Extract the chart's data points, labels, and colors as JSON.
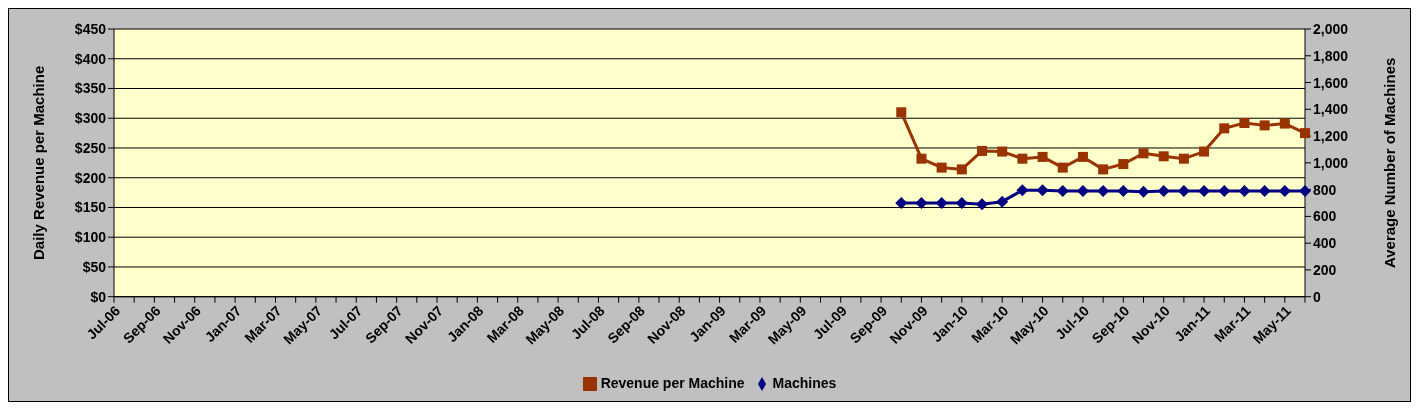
{
  "chart_data": {
    "type": "line",
    "ylabel": "Daily Revenue per Machine",
    "y2label": "Average Number of Machines",
    "categories": [
      "Jul-06",
      null,
      "Sep-06",
      null,
      "Nov-06",
      null,
      "Jan-07",
      null,
      "Mar-07",
      null,
      "May-07",
      null,
      "Jul-07",
      null,
      "Sep-07",
      null,
      "Nov-07",
      null,
      "Jan-08",
      null,
      "Mar-08",
      null,
      "May-08",
      null,
      "Jul-08",
      null,
      "Sep-08",
      null,
      "Nov-08",
      null,
      "Jan-09",
      null,
      "Mar-09",
      null,
      "May-09",
      null,
      "Jul-09",
      null,
      "Sep-09",
      null,
      "Nov-09",
      null,
      "Jan-10",
      null,
      "Mar-10",
      null,
      "May-10",
      null,
      "Jul-10",
      null,
      "Sep-10",
      null,
      "Nov-10",
      null,
      "Jan-11",
      null,
      "Mar-11",
      null,
      "May-11",
      null
    ],
    "series": [
      {
        "name": "Revenue per Machine",
        "color": "#993300",
        "marker": "square",
        "values": [
          null,
          null,
          null,
          null,
          null,
          null,
          null,
          null,
          null,
          null,
          null,
          null,
          null,
          null,
          null,
          null,
          null,
          null,
          null,
          null,
          null,
          null,
          null,
          null,
          null,
          null,
          null,
          null,
          null,
          null,
          null,
          null,
          null,
          null,
          null,
          null,
          null,
          null,
          null,
          310,
          232,
          217,
          214,
          245,
          244,
          232,
          235,
          217,
          235,
          214,
          223,
          241,
          236,
          232,
          244,
          283,
          292,
          288,
          291,
          275
        ]
      },
      {
        "name": "Machines",
        "color": "#000080",
        "marker": "diamond",
        "axis": "y2",
        "values": [
          null,
          null,
          null,
          null,
          null,
          null,
          null,
          null,
          null,
          null,
          null,
          null,
          null,
          null,
          null,
          null,
          null,
          null,
          null,
          null,
          null,
          null,
          null,
          null,
          null,
          null,
          null,
          null,
          null,
          null,
          null,
          null,
          null,
          null,
          null,
          null,
          null,
          null,
          null,
          700,
          700,
          700,
          700,
          690,
          710,
          795,
          795,
          790,
          790,
          790,
          790,
          785,
          790,
          790,
          790,
          790,
          790,
          790,
          790,
          790
        ]
      }
    ],
    "ylim": [
      0,
      450
    ],
    "yticks": [
      {
        "value": 0,
        "label": "$0"
      },
      {
        "value": 50,
        "label": "$50"
      },
      {
        "value": 100,
        "label": "$100"
      },
      {
        "value": 150,
        "label": "$150"
      },
      {
        "value": 200,
        "label": "$200"
      },
      {
        "value": 250,
        "label": "$250"
      },
      {
        "value": 300,
        "label": "$300"
      },
      {
        "value": 350,
        "label": "$350"
      },
      {
        "value": 400,
        "label": "$400"
      },
      {
        "value": 450,
        "label": "$450"
      }
    ],
    "y2lim": [
      0,
      2000
    ],
    "y2ticks": [
      0,
      200,
      400,
      600,
      800,
      {
        "value": 1000,
        "label": "1,000"
      },
      {
        "value": 1200,
        "label": "1,200"
      },
      {
        "value": 1400,
        "label": "1,400"
      },
      {
        "value": 1600,
        "label": "1,600"
      },
      {
        "value": 1800,
        "label": "1,800"
      },
      {
        "value": 2000,
        "label": "2,000"
      }
    ],
    "grid": "y",
    "legend": "bottom",
    "line_style": "solid"
  }
}
